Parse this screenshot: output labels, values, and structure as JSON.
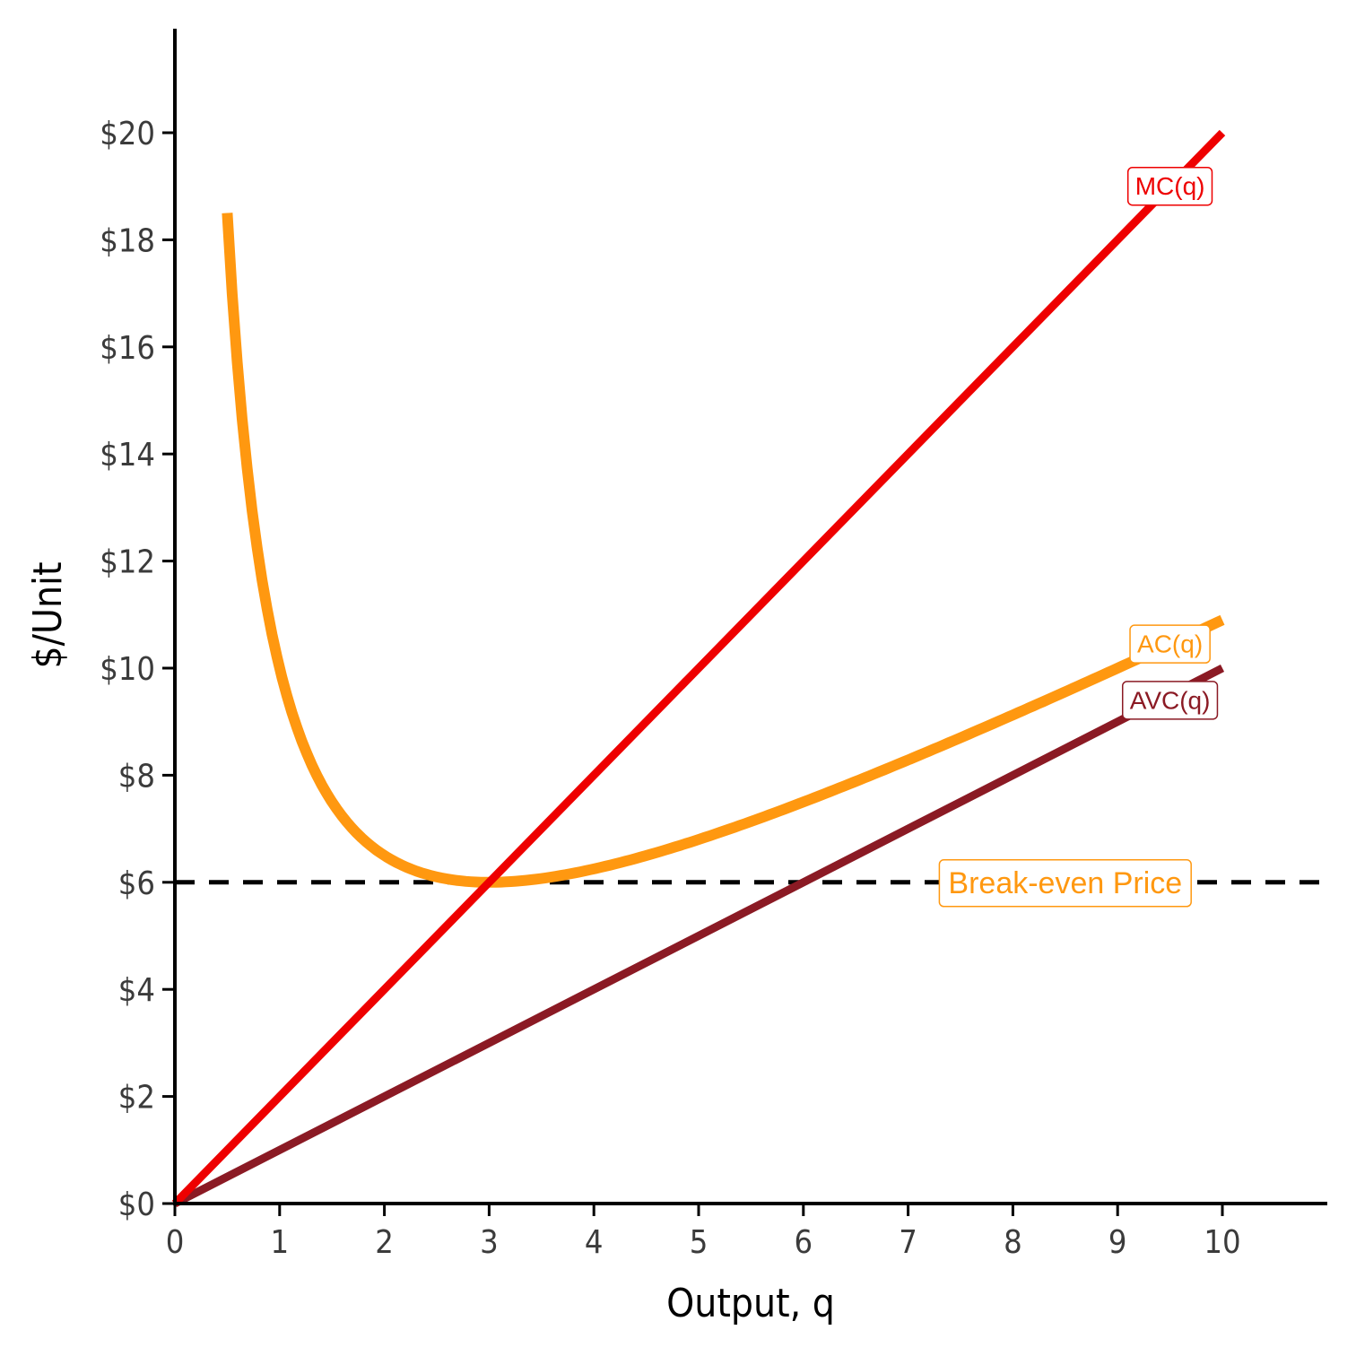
{
  "chart_data": {
    "type": "line",
    "title": "",
    "xlabel": "Output, q",
    "ylabel": "$/Unit",
    "xlim": [
      0,
      11
    ],
    "ylim": [
      0,
      22
    ],
    "x_ticks": [
      0,
      1,
      2,
      3,
      4,
      5,
      6,
      7,
      8,
      9,
      10
    ],
    "x_tick_labels": [
      "0",
      "1",
      "2",
      "3",
      "4",
      "5",
      "6",
      "7",
      "8",
      "9",
      "10"
    ],
    "y_ticks": [
      0,
      2,
      4,
      6,
      8,
      10,
      12,
      14,
      16,
      18,
      20
    ],
    "y_tick_labels": [
      "$0",
      "$2",
      "$4",
      "$6",
      "$8",
      "$10",
      "$12",
      "$14",
      "$16",
      "$18",
      "$20"
    ],
    "grid": false,
    "legend": "none",
    "series": [
      {
        "name": "MC(q)",
        "color": "#ee0000",
        "formula": "2q",
        "x": [
          0,
          10
        ],
        "y": [
          0,
          20
        ],
        "label_at": [
          9.5,
          19
        ]
      },
      {
        "name": "AVC(q)",
        "color": "#8b1a24",
        "formula": "q",
        "x": [
          0,
          10
        ],
        "y": [
          0,
          10
        ],
        "label_at": [
          9.5,
          9.4
        ]
      },
      {
        "name": "AC(q)",
        "color": "#ff9810",
        "formula": "q + 9/q",
        "x": [
          0.5,
          0.75,
          1,
          1.5,
          2,
          2.5,
          3,
          4,
          5,
          6,
          7,
          8,
          9,
          10
        ],
        "y": [
          18.5,
          12.75,
          10,
          7.5,
          6.5,
          6.1,
          6,
          6.25,
          6.8,
          7.5,
          8.29,
          9.13,
          10,
          10.9
        ],
        "label_at": [
          9.5,
          10.45
        ]
      }
    ],
    "reference_lines": [
      {
        "name": "Break-even Price",
        "y": 6,
        "style": "dashed",
        "color": "#000000",
        "label_color": "#ff9810",
        "label_at": [
          8.5,
          6
        ]
      }
    ]
  }
}
